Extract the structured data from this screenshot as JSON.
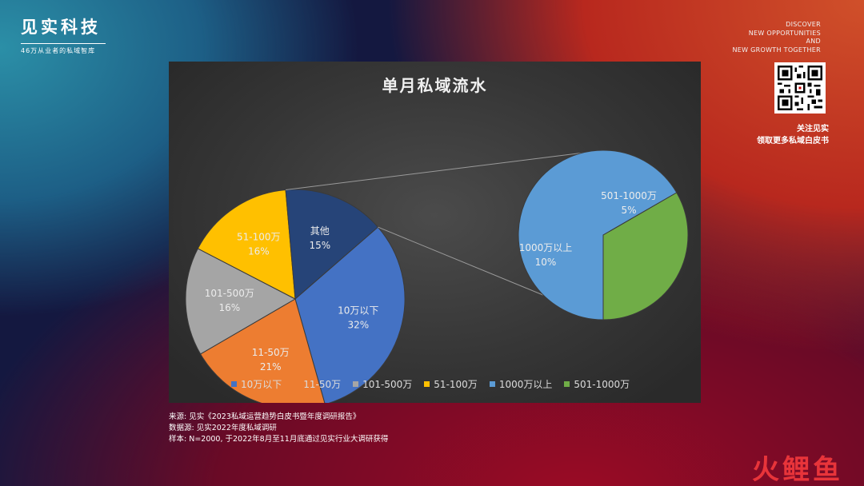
{
  "brand": {
    "name": "见实科技",
    "tagline": "46万从业者的私域智库"
  },
  "discover": [
    "DISCOVER",
    "NEW OPPORTUNITIES",
    "AND",
    "NEW GROWTH TOGETHER"
  ],
  "follow": [
    "关注见实",
    "领取更多私域白皮书"
  ],
  "qr_icon": "qr-code-icon",
  "source": {
    "line1": "来源: 见实《2023私域运营趋势白皮书暨年度调研报告》",
    "line2": "数据源: 见实2022年度私域调研",
    "line3": "样本: N=2000, 于2022年8月至11月底通过见实行业大调研获得"
  },
  "watermark": "火鲤鱼",
  "chart_data": {
    "type": "pie",
    "subtype": "pie-of-pie",
    "title": "单月私域流水",
    "slices": [
      {
        "label": "10万以下",
        "value": 32,
        "display": "32%",
        "color": "#4472c4"
      },
      {
        "label": "11-50万",
        "value": 21,
        "display": "21%",
        "color": "#ed7d31"
      },
      {
        "label": "101-500万",
        "value": 16,
        "display": "16%",
        "color": "#a5a5a5"
      },
      {
        "label": "51-100万",
        "value": 16,
        "display": "16%",
        "color": "#ffc000"
      },
      {
        "label": "其他",
        "value": 15,
        "display": "15%",
        "color": "#264478"
      }
    ],
    "secondary": [
      {
        "label": "1000万以上",
        "value": 10,
        "display": "10%",
        "color": "#5b9bd5"
      },
      {
        "label": "501-1000万",
        "value": 5,
        "display": "5%",
        "color": "#70ad47"
      }
    ],
    "legend": [
      {
        "label": "10万以下",
        "color": "#4472c4"
      },
      {
        "label": "11-50万",
        "color": "#ed7d31"
      },
      {
        "label": "101-500万",
        "color": "#a5a5a5"
      },
      {
        "label": "51-100万",
        "color": "#ffc000"
      },
      {
        "label": "1000万以上",
        "color": "#5b9bd5"
      },
      {
        "label": "501-1000万",
        "color": "#70ad47"
      }
    ],
    "legend_position": "bottom"
  }
}
